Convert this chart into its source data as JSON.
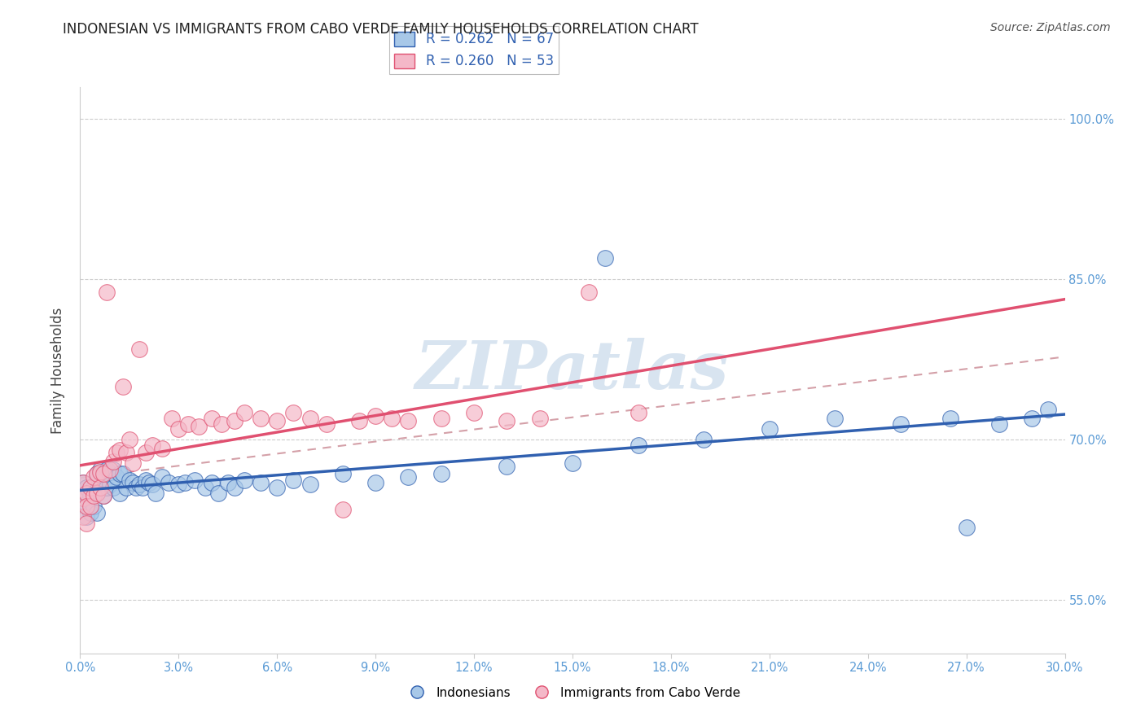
{
  "title": "INDONESIAN VS IMMIGRANTS FROM CABO VERDE FAMILY HOUSEHOLDS CORRELATION CHART",
  "source": "Source: ZipAtlas.com",
  "ylabel": "Family Households",
  "legend1_r": "R = 0.262",
  "legend1_n": "N = 67",
  "legend2_r": "R = 0.260",
  "legend2_n": "N = 53",
  "color_blue": "#a8c8e8",
  "color_pink": "#f4b8c8",
  "color_blue_line": "#3060b0",
  "color_pink_line": "#e05070",
  "color_dashed": "#e08090",
  "xlim": [
    0.0,
    0.3
  ],
  "ylim": [
    0.5,
    1.03
  ],
  "xticks": [
    0.0,
    0.03,
    0.06,
    0.09,
    0.12,
    0.15,
    0.18,
    0.21,
    0.24,
    0.27,
    0.3
  ],
  "yticks": [
    0.55,
    0.7,
    0.85,
    1.0
  ],
  "xticklabels": [
    "0.0%",
    "3.0%",
    "6.0%",
    "9.0%",
    "12.0%",
    "15.0%",
    "18.0%",
    "21.0%",
    "24.0%",
    "27.0%",
    "30.0%"
  ],
  "yticklabels": [
    "55.0%",
    "70.0%",
    "85.0%",
    "100.0%"
  ],
  "blue_x": [
    0.001,
    0.001,
    0.002,
    0.002,
    0.002,
    0.003,
    0.003,
    0.004,
    0.004,
    0.005,
    0.005,
    0.005,
    0.006,
    0.006,
    0.007,
    0.007,
    0.008,
    0.008,
    0.009,
    0.01,
    0.01,
    0.011,
    0.012,
    0.012,
    0.013,
    0.014,
    0.015,
    0.016,
    0.017,
    0.018,
    0.019,
    0.02,
    0.021,
    0.022,
    0.023,
    0.025,
    0.027,
    0.03,
    0.032,
    0.035,
    0.038,
    0.04,
    0.042,
    0.045,
    0.047,
    0.05,
    0.055,
    0.06,
    0.065,
    0.07,
    0.08,
    0.09,
    0.1,
    0.11,
    0.13,
    0.15,
    0.16,
    0.17,
    0.19,
    0.21,
    0.23,
    0.25,
    0.265,
    0.27,
    0.28,
    0.29,
    0.295
  ],
  "blue_y": [
    0.66,
    0.645,
    0.655,
    0.64,
    0.628,
    0.648,
    0.632,
    0.655,
    0.638,
    0.668,
    0.65,
    0.632,
    0.672,
    0.655,
    0.668,
    0.648,
    0.672,
    0.655,
    0.658,
    0.672,
    0.655,
    0.665,
    0.668,
    0.65,
    0.668,
    0.655,
    0.662,
    0.66,
    0.655,
    0.658,
    0.655,
    0.662,
    0.66,
    0.658,
    0.65,
    0.665,
    0.66,
    0.658,
    0.66,
    0.662,
    0.655,
    0.66,
    0.65,
    0.66,
    0.655,
    0.662,
    0.66,
    0.655,
    0.662,
    0.658,
    0.668,
    0.66,
    0.665,
    0.668,
    0.675,
    0.678,
    0.87,
    0.695,
    0.7,
    0.71,
    0.72,
    0.715,
    0.72,
    0.618,
    0.715,
    0.72,
    0.728
  ],
  "pink_x": [
    0.001,
    0.001,
    0.001,
    0.002,
    0.002,
    0.002,
    0.003,
    0.003,
    0.004,
    0.004,
    0.005,
    0.005,
    0.006,
    0.006,
    0.007,
    0.007,
    0.008,
    0.009,
    0.01,
    0.011,
    0.012,
    0.013,
    0.014,
    0.015,
    0.016,
    0.018,
    0.02,
    0.022,
    0.025,
    0.028,
    0.03,
    0.033,
    0.036,
    0.04,
    0.043,
    0.047,
    0.05,
    0.055,
    0.06,
    0.065,
    0.07,
    0.075,
    0.08,
    0.085,
    0.09,
    0.095,
    0.1,
    0.11,
    0.12,
    0.13,
    0.14,
    0.155,
    0.17
  ],
  "pink_y": [
    0.66,
    0.645,
    0.628,
    0.65,
    0.638,
    0.622,
    0.655,
    0.638,
    0.665,
    0.648,
    0.668,
    0.65,
    0.67,
    0.655,
    0.668,
    0.648,
    0.838,
    0.672,
    0.68,
    0.688,
    0.69,
    0.75,
    0.688,
    0.7,
    0.678,
    0.785,
    0.688,
    0.695,
    0.692,
    0.72,
    0.71,
    0.715,
    0.712,
    0.72,
    0.715,
    0.718,
    0.725,
    0.72,
    0.718,
    0.725,
    0.72,
    0.715,
    0.635,
    0.718,
    0.722,
    0.72,
    0.718,
    0.72,
    0.725,
    0.718,
    0.72,
    0.838,
    0.725
  ],
  "watermark_color": "#d8e4f0"
}
